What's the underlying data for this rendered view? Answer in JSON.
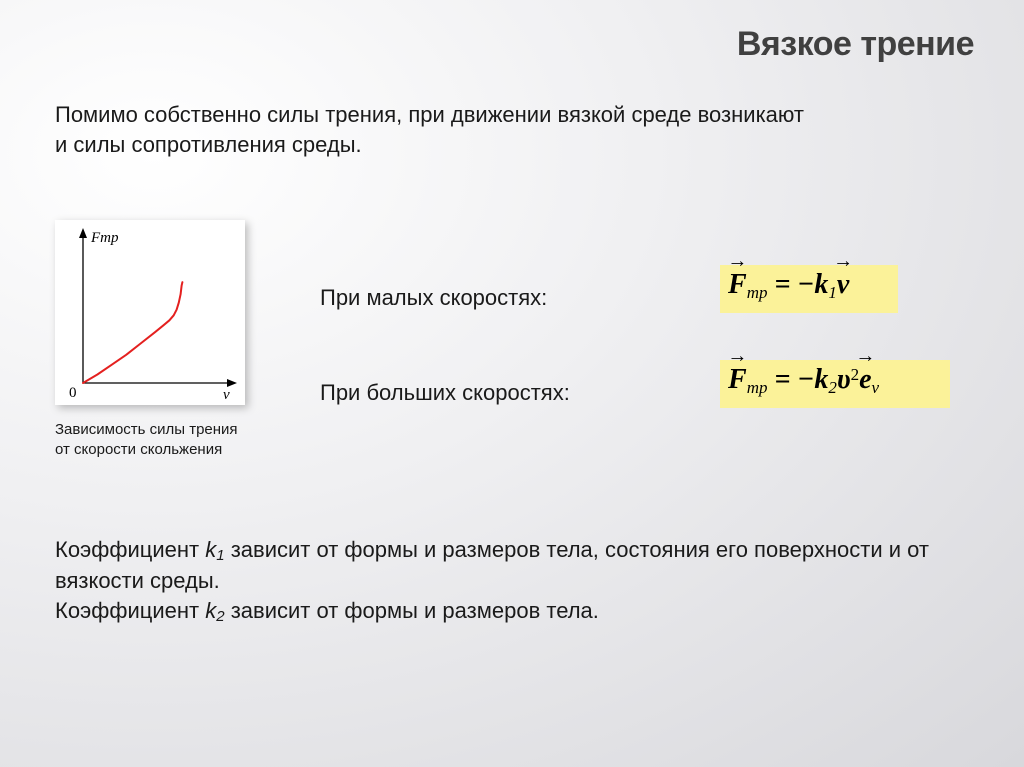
{
  "title": "Вязкое трение",
  "intro": "Помимо собственно силы трения, при движении вязкой среде возникают и силы сопротивления среды.",
  "chart": {
    "type": "line",
    "y_axis_label": "Fтр",
    "x_axis_label": "v",
    "origin_label": "0",
    "axis_color": "#000000",
    "curve_color": "#e4201f",
    "background": "#ffffff",
    "label_fontsize": 15,
    "label_font": "serif-italic",
    "xlim": [
      0,
      10
    ],
    "ylim": [
      0,
      10
    ],
    "points": [
      [
        0.0,
        0.0
      ],
      [
        1.0,
        0.6
      ],
      [
        2.0,
        1.3
      ],
      [
        3.0,
        2.0
      ],
      [
        4.0,
        2.8
      ],
      [
        5.0,
        3.6
      ],
      [
        5.6,
        4.1
      ],
      [
        6.0,
        4.45
      ],
      [
        6.3,
        4.8
      ],
      [
        6.5,
        5.2
      ],
      [
        6.65,
        5.7
      ],
      [
        6.78,
        6.3
      ],
      [
        6.85,
        6.9
      ],
      [
        6.9,
        7.15
      ]
    ],
    "curve_width": 2,
    "arrow_size": 6
  },
  "chart_caption": "Зависимость силы трения от скорости скольжения",
  "row1_label": "При малых скоростях:",
  "row2_label": "При больших скоростях:",
  "formula1": {
    "lhs_symbol": "F",
    "lhs_sub": "тр",
    "rhs": " = −k",
    "k_sub": "1",
    "tail_symbol": "v",
    "background": "#fbf299",
    "text_color": "#000000",
    "fontsize": 28
  },
  "formula2": {
    "lhs_symbol": "F",
    "lhs_sub": "тр",
    "rhs": " = −k",
    "k_sub": "2",
    "upsilon": "υ",
    "upsilon_sup": "2",
    "tail_symbol": "e",
    "tail_sub": "v",
    "background": "#fbf299",
    "text_color": "#000000",
    "fontsize": 28
  },
  "footer": {
    "line1_a": "Коэффициент ",
    "line1_k": "k",
    "line1_sub": "1",
    "line1_b": " зависит от формы и размеров тела, состояния его поверхности и от вязкости среды.",
    "line2_a": "Коэффициент ",
    "line2_k": "k",
    "line2_sub": "2",
    "line2_b": " зависит от формы и размеров тела."
  }
}
